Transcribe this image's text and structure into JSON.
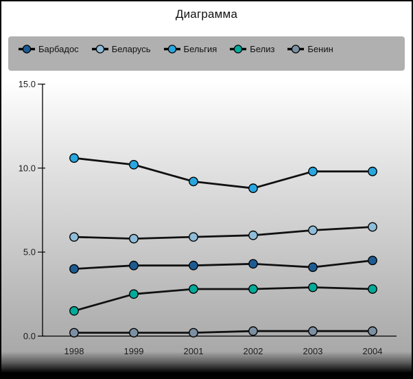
{
  "chart_data": {
    "type": "line",
    "title": "Диаграмма",
    "categories": [
      "1998",
      "1999",
      "2001",
      "2002",
      "2003",
      "2004"
    ],
    "series": [
      {
        "name": "Барбадос",
        "color": "#1d5c93",
        "values": [
          4.0,
          4.2,
          4.2,
          4.3,
          4.1,
          4.5
        ]
      },
      {
        "name": "Беларусь",
        "color": "#8fbdd9",
        "values": [
          5.9,
          5.8,
          5.9,
          6.0,
          6.3,
          6.5
        ]
      },
      {
        "name": "Бельгия",
        "color": "#29a7e0",
        "values": [
          10.6,
          10.2,
          9.2,
          8.8,
          9.8,
          9.8
        ]
      },
      {
        "name": "Белиз",
        "color": "#00ab9a",
        "values": [
          1.5,
          2.5,
          2.8,
          2.8,
          2.9,
          2.8
        ]
      },
      {
        "name": "Бенин",
        "color": "#7b90a3",
        "values": [
          0.2,
          0.2,
          0.2,
          0.3,
          0.3,
          0.3
        ]
      }
    ],
    "ylim": [
      0,
      15
    ],
    "ytick_step": 5,
    "ytick_labels": [
      "0.0",
      "5.0",
      "10.0",
      "15.0"
    ],
    "grid": false,
    "legend_position": "top",
    "line_color": "#101010",
    "axis_color": "#000000",
    "marker_outline": "#000000",
    "legend_bg": "#b0b0b0",
    "text_color": "#1a1a1a"
  }
}
